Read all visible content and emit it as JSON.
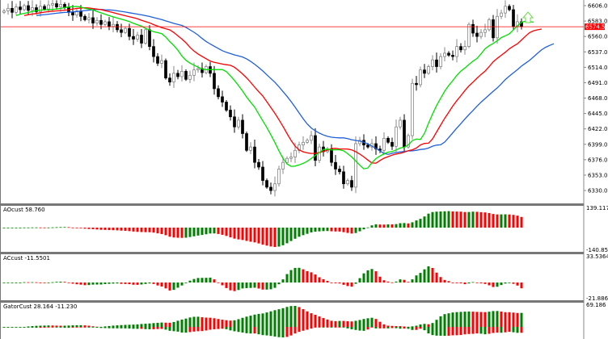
{
  "chart_data": {
    "type": "candlestick",
    "price_axis": {
      "ticks": [
        "6606.00",
        "6583.00",
        "6560.00",
        "6537.00",
        "6514.00",
        "6491.00",
        "6468.00",
        "6445.00",
        "6422.00",
        "6399.00",
        "6376.00",
        "6353.00",
        "6330.00"
      ],
      "current_price": "6574.51",
      "range": [
        6322,
        6612
      ]
    },
    "close": [
      6598,
      6602,
      6596,
      6604,
      6600,
      6606,
      6599,
      6603,
      6597,
      6605,
      6601,
      6607,
      6609,
      6604,
      6608,
      6603,
      6596,
      6592,
      6598,
      6590,
      6585,
      6588,
      6580,
      6584,
      6578,
      6582,
      6575,
      6578,
      6570,
      6566,
      6572,
      6560,
      6556,
      6562,
      6550,
      6570,
      6545,
      6530,
      6520,
      6524,
      6498,
      6492,
      6505,
      6500,
      6508,
      6496,
      6502,
      6510,
      6512,
      6506,
      6515,
      6505,
      6482,
      6470,
      6462,
      6450,
      6440,
      6425,
      6435,
      6415,
      6390,
      6395,
      6372,
      6365,
      6345,
      6335,
      6330,
      6340,
      6362,
      6372,
      6378,
      6380,
      6390,
      6398,
      6402,
      6405,
      6412,
      6375,
      6395,
      6388,
      6392,
      6372,
      6362,
      6358,
      6340,
      6345,
      6335,
      6400,
      6405,
      6398,
      6395,
      6400,
      6392,
      6390,
      6408,
      6402,
      6396,
      6425,
      6435,
      6395,
      6412,
      6490,
      6488,
      6510,
      6505,
      6515,
      6525,
      6515,
      6530,
      6535,
      6532,
      6530,
      6545,
      6540,
      6545,
      6578,
      6565,
      6560,
      6566,
      6570,
      6585,
      6558,
      6590,
      6595,
      6605,
      6600,
      6575,
      6582,
      6574.51
    ],
    "alligator": {
      "jaw_color": "#1f5fdc",
      "teeth_color": "#ff0000",
      "lips_color": "#00e000"
    },
    "panes": [
      {
        "label": "AOcust 58.760",
        "max": "139.117",
        "min": "-140.852"
      },
      {
        "label": "ACcust -11.5501",
        "max": "33.5364",
        "min": "-21.8863"
      },
      {
        "label": "GatorCust 28.164 -11.230",
        "max": "69.186"
      }
    ],
    "colors": {
      "up": "#008000",
      "down": "#ff0000",
      "current_price": "#ff0000",
      "signal_arrow": "#66dd44"
    }
  }
}
